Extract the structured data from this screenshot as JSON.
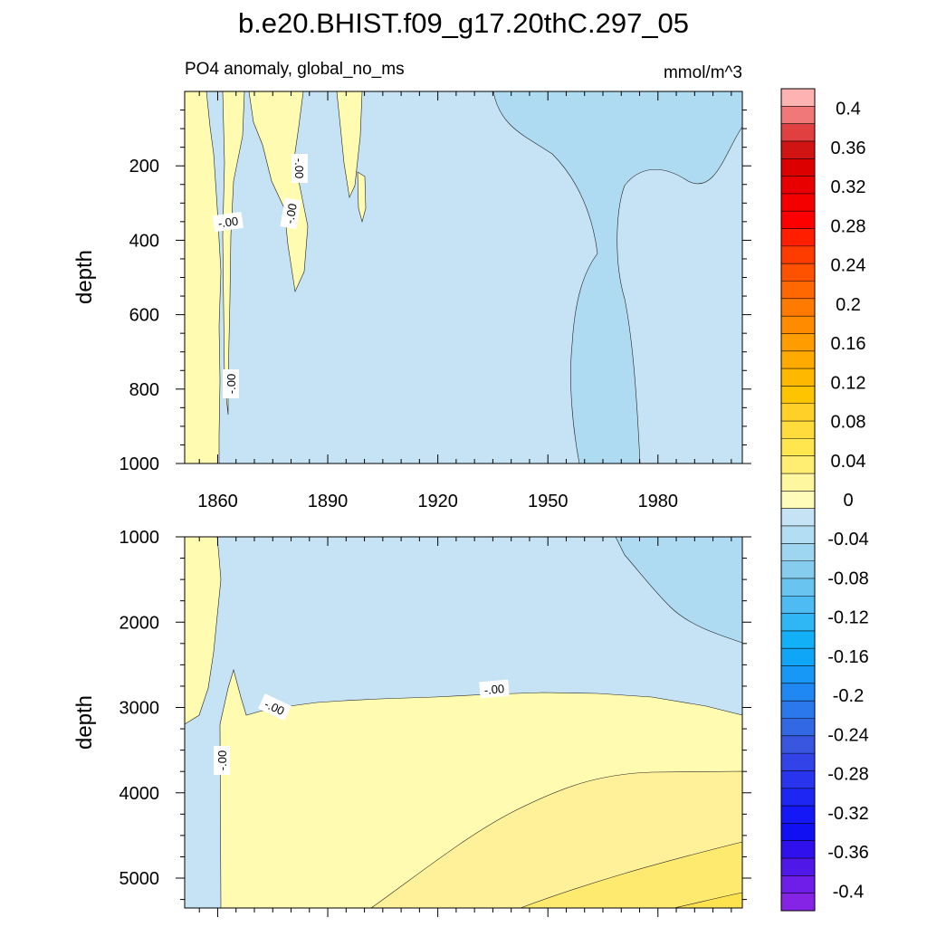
{
  "figure": {
    "title": "b.e20.BHIST.f09_g17.20thC.297_05",
    "subtitle_left": "PO4 anomaly, global_no_ms",
    "subtitle_right": "mmol/m^3"
  },
  "colors": {
    "fill_zero_pos": "#fffbb0",
    "fill_pos2": "#fff19a",
    "fill_pos3": "#ffea70",
    "fill_neg": "#c5e3f4",
    "fill_neg2": "#aedbf1",
    "contour": "#222222"
  },
  "chart_data": [
    {
      "type": "heatmap",
      "panel": "upper",
      "title": "PO4 anomaly, global_no_ms",
      "units": "mmol/m^3",
      "ylabel": "depth",
      "xlabel": "",
      "xlim": [
        1851,
        2003
      ],
      "ylim": [
        1000,
        0
      ],
      "x_ticks": [
        1860,
        1890,
        1920,
        1950,
        1980
      ],
      "x_tick_labels": [
        "1860",
        "1890",
        "1920",
        "1950",
        "1980"
      ],
      "y_ticks": [
        200,
        400,
        600,
        800,
        1000
      ],
      "y_tick_labels": [
        "200",
        "400",
        "600",
        "800",
        "1000"
      ],
      "contour_labels": [
        "-.00",
        "-.00",
        "-.00",
        "-.00"
      ]
    },
    {
      "type": "heatmap",
      "panel": "lower",
      "ylabel": "depth",
      "xlabel": "",
      "xlim": [
        1851,
        2003
      ],
      "ylim": [
        5350,
        1000
      ],
      "x_ticks": [
        1860,
        1890,
        1920,
        1950,
        1980
      ],
      "y_ticks": [
        1000,
        2000,
        3000,
        4000,
        5000
      ],
      "y_tick_labels": [
        "1000",
        "2000",
        "3000",
        "4000",
        "5000"
      ],
      "contour_labels": [
        "-.00",
        "-.00",
        "-.00"
      ]
    },
    {
      "type": "colorbar",
      "range": [
        -0.42,
        0.42
      ],
      "interval": 0.02,
      "tick_labels": [
        "0.4",
        "0.36",
        "0.32",
        "0.28",
        "0.24",
        "0.2",
        "0.16",
        "0.12",
        "0.08",
        "0.04",
        "0",
        "-0.04",
        "-0.08",
        "-0.12",
        "-0.16",
        "-0.2",
        "-0.24",
        "-0.28",
        "-0.32",
        "-0.36",
        "-0.4"
      ],
      "tick_values": [
        0.4,
        0.36,
        0.32,
        0.28,
        0.24,
        0.2,
        0.16,
        0.12,
        0.08,
        0.04,
        0,
        -0.04,
        -0.08,
        -0.12,
        -0.16,
        -0.2,
        -0.24,
        -0.28,
        -0.32,
        -0.36,
        -0.4
      ],
      "colors_top_to_bottom": [
        "#ffb2b2",
        "#f07878",
        "#e04040",
        "#d01414",
        "#dc0000",
        "#e80000",
        "#f40000",
        "#ff0000",
        "#ff1e00",
        "#ff3c00",
        "#ff5200",
        "#ff6800",
        "#ff7a00",
        "#ff8c00",
        "#ff9c00",
        "#ffaa00",
        "#ffb800",
        "#ffc400",
        "#ffd028",
        "#ffdc3c",
        "#ffe64e",
        "#ffee72",
        "#fff6a0",
        "#fffbb8",
        "#c5e3f4",
        "#b3ddf2",
        "#9ed5f0",
        "#86ccef",
        "#6ac4f0",
        "#4ebcf2",
        "#2fb6f4",
        "#12b0f6",
        "#10a6f8",
        "#1898f6",
        "#2088f2",
        "#2a78ec",
        "#3268e4",
        "#3856e0",
        "#3244e8",
        "#2834ee",
        "#1e26f4",
        "#1418f6",
        "#1010f2",
        "#3010ec",
        "#5018e8",
        "#6e1ee8",
        "#8624e6"
      ]
    }
  ]
}
